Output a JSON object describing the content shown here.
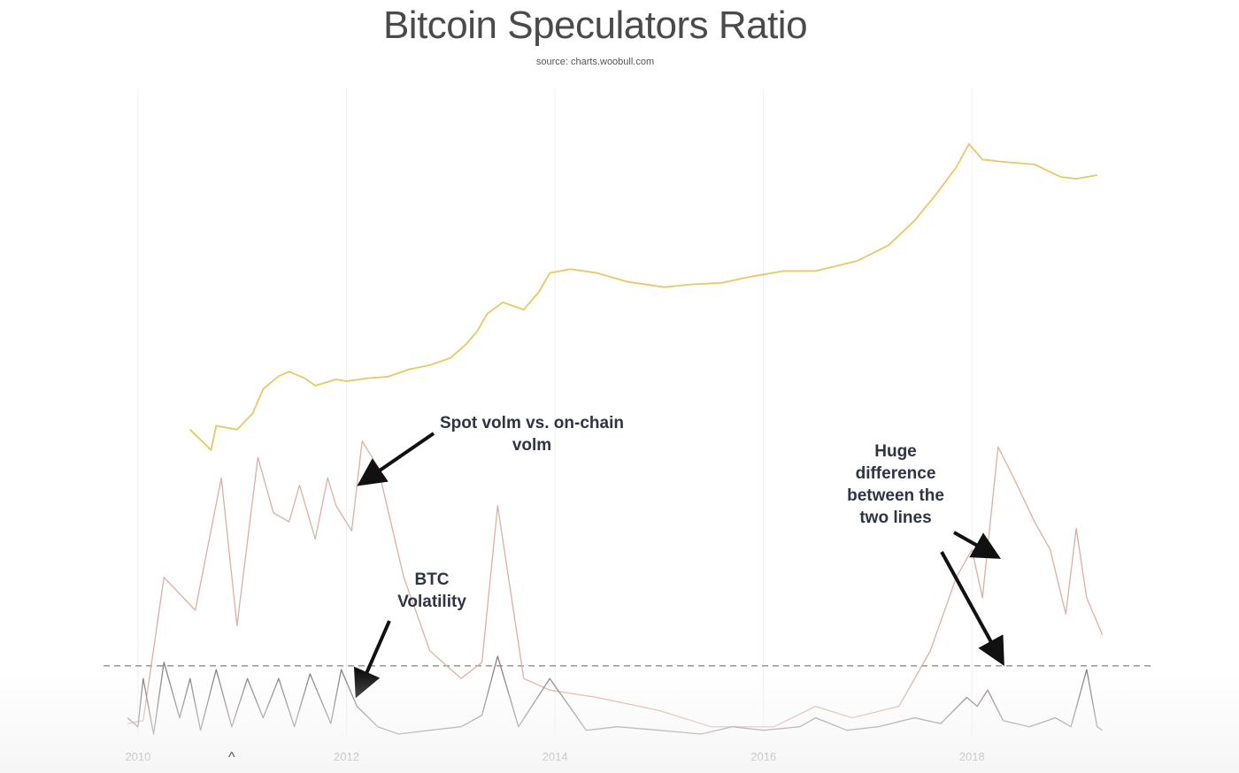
{
  "chart_data": {
    "type": "line",
    "title": "Bitcoin Speculators Ratio",
    "subtitle": "source: charts.woobull.com",
    "x_ticks": [
      "2010",
      "2012",
      "2014",
      "2016",
      "2018"
    ],
    "x_range": [
      2009.5,
      2019.5
    ],
    "y_log": true,
    "grid": "vertical",
    "series": [
      {
        "name": "",
        "color": "#e8c766",
        "x": [
          2010.5,
          2010.7,
          2010.75,
          2010.95,
          2011.1,
          2011.2,
          2011.35,
          2011.45,
          2011.6,
          2011.7,
          2011.9,
          2012.0,
          2012.2,
          2012.4,
          2012.6,
          2012.8,
          2013.0,
          2013.15,
          2013.25,
          2013.35,
          2013.5,
          2013.7,
          2013.85,
          2013.95,
          2014.15,
          2014.4,
          2014.7,
          2015.05,
          2015.3,
          2015.6,
          2015.9,
          2016.2,
          2016.5,
          2016.9,
          2017.2,
          2017.45,
          2017.65,
          2017.85,
          2017.97,
          2018.1,
          2018.3,
          2018.6,
          2018.85,
          2019.0,
          2019.2
        ],
        "y": [
          2.0,
          1.2,
          2.2,
          2.0,
          3.0,
          5.5,
          7.6,
          8.5,
          7.2,
          6.0,
          7.0,
          6.7,
          7.2,
          7.5,
          9.0,
          10.0,
          12.0,
          17.0,
          23.0,
          36.0,
          48.0,
          40.0,
          63.0,
          100.0,
          110.0,
          100.0,
          80.0,
          70.0,
          75.0,
          78.0,
          92.0,
          105.0,
          105.0,
          135.0,
          200.0,
          370.0,
          700.0,
          1400.0,
          2500.0,
          1700.0,
          1600.0,
          1500.0,
          1100.0,
          1050.0,
          1150.0
        ]
      },
      {
        "name": "",
        "color": "#d9b0a4",
        "x": [
          2009.9,
          2010.05,
          2010.25,
          2010.55,
          2010.8,
          2010.95,
          2011.15,
          2011.3,
          2011.45,
          2011.55,
          2011.7,
          2011.82,
          2011.9,
          2012.05,
          2012.15,
          2012.3,
          2012.55,
          2012.8,
          2013.1,
          2013.3,
          2013.45,
          2013.7,
          2013.95,
          2014.4,
          2015.0,
          2015.5,
          2016.1,
          2016.5,
          2016.85,
          2017.3,
          2017.6,
          2017.85,
          2018.0,
          2018.1,
          2018.25,
          2018.4,
          2018.6,
          2018.75,
          2018.9,
          2019.0,
          2019.1,
          2019.25
        ],
        "y": [
          0.0013,
          0.0014,
          0.05,
          0.022,
          0.6,
          0.015,
          1.0,
          0.25,
          0.2,
          0.5,
          0.13,
          0.6,
          0.3,
          0.16,
          1.5,
          0.8,
          0.05,
          0.008,
          0.004,
          0.006,
          0.3,
          0.004,
          0.003,
          0.0025,
          0.0018,
          0.0012,
          0.0012,
          0.002,
          0.0015,
          0.002,
          0.008,
          0.05,
          0.1,
          0.03,
          1.3,
          0.6,
          0.2,
          0.1,
          0.02,
          0.17,
          0.03,
          0.012
        ]
      },
      {
        "name": "",
        "color": "#8b7f88",
        "x": [
          2009.9,
          2010.0,
          2010.05,
          2010.15,
          2010.25,
          2010.4,
          2010.5,
          2010.6,
          2010.75,
          2010.9,
          2011.05,
          2011.2,
          2011.35,
          2011.5,
          2011.65,
          2011.85,
          2011.95,
          2012.1,
          2012.3,
          2012.5,
          2012.8,
          2013.1,
          2013.3,
          2013.45,
          2013.65,
          2013.95,
          2014.3,
          2014.6,
          2015.0,
          2015.4,
          2015.7,
          2016.0,
          2016.35,
          2016.5,
          2016.8,
          2017.1,
          2017.45,
          2017.7,
          2017.95,
          2018.05,
          2018.15,
          2018.3,
          2018.55,
          2018.8,
          2018.95,
          2019.1,
          2019.2,
          2019.25
        ],
        "y": [
          0.0015,
          0.0012,
          0.004,
          0.001,
          0.006,
          0.0015,
          0.004,
          0.0011,
          0.005,
          0.0012,
          0.004,
          0.0015,
          0.004,
          0.0012,
          0.0045,
          0.0013,
          0.005,
          0.002,
          0.0012,
          0.001,
          0.0011,
          0.0012,
          0.0016,
          0.007,
          0.0012,
          0.004,
          0.0011,
          0.0012,
          0.0011,
          0.001,
          0.0012,
          0.0011,
          0.0012,
          0.0015,
          0.0011,
          0.0012,
          0.0015,
          0.0013,
          0.0025,
          0.002,
          0.003,
          0.0014,
          0.0012,
          0.0015,
          0.0012,
          0.005,
          0.0012,
          0.0011
        ]
      }
    ],
    "reference_line": {
      "style": "dashed",
      "color": "#a49c98",
      "y": 0.0055
    }
  },
  "annotations": {
    "spot_vs_onchain": "Spot volm vs. on-chain volm",
    "btc_volatility": "BTC Volatility",
    "huge_difference": "Huge difference between the two lines"
  }
}
